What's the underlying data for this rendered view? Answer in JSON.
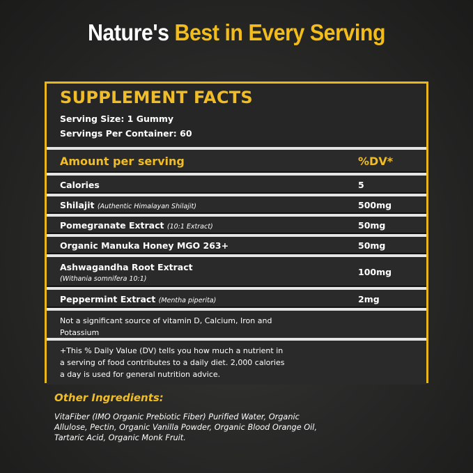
{
  "headline": {
    "white": "Nature's",
    "gold": "Best in Every Serving"
  },
  "facts": {
    "title": "SUPPLEMENT FACTS",
    "serving_size": "Serving Size: 1 Gummy",
    "servings_per_container": "Servings Per Container: 60",
    "header": {
      "amount": "Amount per serving",
      "dv": "%DV*"
    },
    "rows": [
      {
        "name": "Calories",
        "note": "",
        "value": "5"
      },
      {
        "name": "Shilajit",
        "note": "(Authentic Himalayan Shilajit)",
        "value": "500mg"
      },
      {
        "name": "Pomegranate Extract",
        "note": "(10:1 Extract)",
        "value": "50mg"
      },
      {
        "name": "Organic Manuka Honey MGO 263+",
        "note": "",
        "value": "50mg"
      },
      {
        "name": "Ashwagandha Root Extract",
        "note": "(Withania somnifera 10:1)",
        "value": "100mg"
      },
      {
        "name": "Peppermint Extract",
        "note": "(Mentha piperita)",
        "value": "2mg"
      }
    ],
    "not_significant": "Not a significant source of vitamin D, Calcium, Iron and Potassium",
    "dv_note": "+This % Daily Value (DV) tells you how much a nutrient in a serving of food contributes to a daily diet. 2,000 calories a day is used for general nutrition advice."
  },
  "other_ingredients": {
    "title": "Other Ingredients:",
    "text": "VitaFiber (IMO Organic Prebiotic Fiber) Purified Water, Organic Allulose, Pectin, Organic Vanilla Powder, Organic Blood Orange Oil, Tartaric Acid, Organic Monk Fruit."
  },
  "colors": {
    "accent": "#f0bd28",
    "background": "#262626"
  }
}
